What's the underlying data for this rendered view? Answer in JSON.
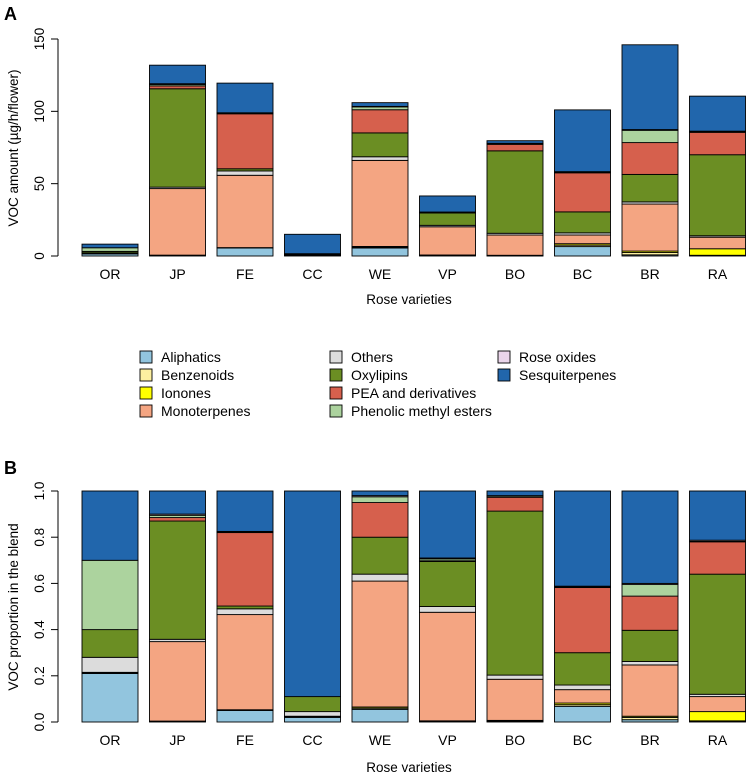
{
  "colors": {
    "Aliphatics": "#92c5de",
    "Benzenoids": "#fdf0a0",
    "Ionones": "#ffff00",
    "Monoterpenes": "#f4a582",
    "Others": "#dcdcdc",
    "Oxylipins": "#6b8e23",
    "PEA and derivatives": "#d6604d",
    "Phenolic methyl esters": "#acd39e",
    "Rose oxides": "#ead5ea",
    "Sesquiterpenes": "#2166ac"
  },
  "legend": {
    "items": [
      "Aliphatics",
      "Benzenoids",
      "Ionones",
      "Monoterpenes",
      "Others",
      "Oxylipins",
      "PEA and derivatives",
      "Phenolic methyl esters",
      "Rose oxides",
      "Sesquiterpenes"
    ]
  },
  "chart_data": [
    {
      "panel": "A",
      "type": "bar",
      "stacked": true,
      "title": "",
      "xlabel": "Rose varieties",
      "ylabel": "VOC amount (µg/h/flower)",
      "ylim": [
        0,
        150
      ],
      "yticks": [
        "0",
        "50",
        "100",
        "150"
      ],
      "categories": [
        "OR",
        "JP",
        "FE",
        "CC",
        "WE",
        "VP",
        "BO",
        "BC",
        "BR",
        "RA"
      ],
      "series": [
        {
          "name": "Aliphatics",
          "values": [
            1.5,
            0.3,
            5.5,
            0.4,
            5.5,
            0.3,
            0.1,
            6.5,
            0.8,
            0.3
          ]
        },
        {
          "name": "Benzenoids",
          "values": [
            0.1,
            0.2,
            0.2,
            0.1,
            0.6,
            0.3,
            0.3,
            1.0,
            1.6,
            0.2
          ]
        },
        {
          "name": "Ionones",
          "values": [
            0.1,
            0.1,
            0.1,
            0.1,
            0.5,
            0.1,
            0.1,
            1.0,
            1.0,
            4.5
          ]
        },
        {
          "name": "Monoterpenes",
          "values": [
            0.0,
            46.0,
            50.0,
            0.3,
            59.5,
            19.5,
            14.0,
            6.0,
            32.5,
            8.0
          ]
        },
        {
          "name": "Others",
          "values": [
            0.5,
            1.0,
            3.0,
            0.3,
            2.5,
            1.0,
            1.2,
            1.5,
            1.5,
            1.0
          ]
        },
        {
          "name": "Oxylipins",
          "values": [
            1.0,
            68.0,
            1.5,
            0.4,
            16.5,
            8.5,
            57.0,
            14.5,
            19.0,
            56.0
          ]
        },
        {
          "name": "PEA and derivatives",
          "values": [
            0.0,
            2.0,
            38.0,
            0.0,
            16.0,
            0.2,
            4.5,
            27.0,
            22.0,
            15.5
          ]
        },
        {
          "name": "Phenolic methyl esters",
          "values": [
            2.5,
            1.0,
            0.5,
            0.0,
            2.0,
            0.3,
            0.5,
            0.5,
            8.5,
            0.3
          ]
        },
        {
          "name": "Rose oxides",
          "values": [
            0.0,
            0.5,
            0.2,
            0.0,
            0.3,
            0.2,
            0.2,
            0.3,
            0.5,
            0.5
          ]
        },
        {
          "name": "Sesquiterpenes",
          "values": [
            2.5,
            12.8,
            20.5,
            13.4,
            2.6,
            11.1,
            1.8,
            42.7,
            58.6,
            24.2
          ]
        }
      ]
    },
    {
      "panel": "B",
      "type": "bar",
      "stacked": true,
      "title": "",
      "xlabel": "Rose varieties",
      "ylabel": "VOC proportion in the blend",
      "ylim": [
        0,
        1
      ],
      "yticks": [
        "0.0",
        "0.2",
        "0.4",
        "0.6",
        "0.8",
        "1.0"
      ],
      "categories": [
        "OR",
        "JP",
        "FE",
        "CC",
        "WE",
        "VP",
        "BO",
        "BC",
        "BR",
        "RA"
      ],
      "series": [
        {
          "name": "Aliphatics",
          "values": [
            0.21,
            0.002,
            0.05,
            0.02,
            0.055,
            0.002,
            0.002,
            0.068,
            0.01,
            0.003
          ]
        },
        {
          "name": "Benzenoids",
          "values": [
            0.003,
            0.001,
            0.002,
            0.003,
            0.005,
            0.002,
            0.003,
            0.007,
            0.01,
            0.002
          ]
        },
        {
          "name": "Ionones",
          "values": [
            0.002,
            0.001,
            0.001,
            0.002,
            0.005,
            0.001,
            0.002,
            0.007,
            0.005,
            0.04
          ]
        },
        {
          "name": "Monoterpenes",
          "values": [
            0.0,
            0.344,
            0.412,
            0.0,
            0.545,
            0.47,
            0.178,
            0.058,
            0.222,
            0.065
          ]
        },
        {
          "name": "Others",
          "values": [
            0.065,
            0.01,
            0.025,
            0.02,
            0.03,
            0.025,
            0.018,
            0.02,
            0.015,
            0.01
          ]
        },
        {
          "name": "Oxylipins",
          "values": [
            0.12,
            0.512,
            0.012,
            0.065,
            0.16,
            0.195,
            0.71,
            0.14,
            0.135,
            0.52
          ]
        },
        {
          "name": "PEA and derivatives",
          "values": [
            0.0,
            0.015,
            0.318,
            0.0,
            0.15,
            0.003,
            0.06,
            0.282,
            0.148,
            0.14
          ]
        },
        {
          "name": "Phenolic methyl esters",
          "values": [
            0.3,
            0.01,
            0.002,
            0.0,
            0.025,
            0.008,
            0.005,
            0.003,
            0.05,
            0.002
          ]
        },
        {
          "name": "Rose oxides",
          "values": [
            0.0,
            0.005,
            0.003,
            0.0,
            0.005,
            0.004,
            0.002,
            0.003,
            0.005,
            0.005
          ]
        },
        {
          "name": "Sesquiterpenes",
          "values": [
            0.3,
            0.1,
            0.175,
            0.89,
            0.02,
            0.29,
            0.02,
            0.412,
            0.4,
            0.213
          ]
        }
      ]
    }
  ]
}
